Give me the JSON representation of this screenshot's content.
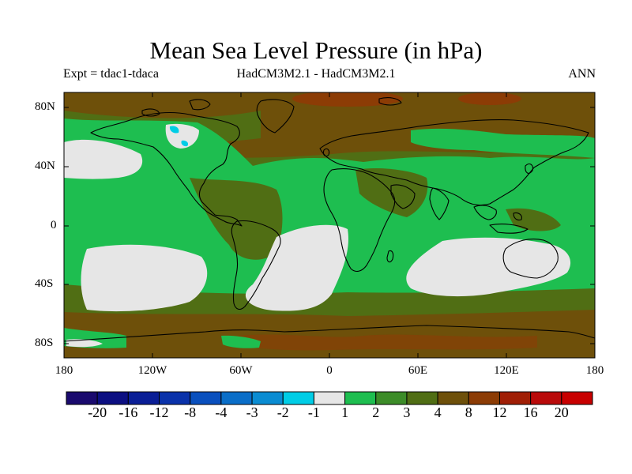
{
  "title": "Mean Sea Level Pressure (in hPa)",
  "experiment": "Expt = tdac1-tdaca",
  "models": "HadCM3M2.1 - HadCM3M2.1",
  "season": "ANN",
  "lat_labels": [
    "80N",
    "40N",
    "0",
    "40S",
    "80S"
  ],
  "lon_labels": [
    "180",
    "120W",
    "60W",
    "0",
    "60E",
    "120E",
    "180"
  ],
  "colorbar": {
    "colors": [
      "#1a0a6e",
      "#0c0f82",
      "#0a1e96",
      "#0a32aa",
      "#0a50be",
      "#0a6ec8",
      "#0a8cd2",
      "#00cde6",
      "#e6e6e6",
      "#1ebe50",
      "#3c8c28",
      "#506e14",
      "#6e500a",
      "#8c3c05",
      "#a01e05",
      "#b90a0a",
      "#c80000"
    ],
    "labels": [
      "-20",
      "-16",
      "-12",
      "-8",
      "-4",
      "-3",
      "-2",
      "-1",
      "1",
      "2",
      "3",
      "4",
      "8",
      "12",
      "16",
      "20"
    ]
  },
  "palette": {
    "background": "#6e500a",
    "green": "#1ebe50",
    "olive": "#506e14",
    "white": "#e6e6e6",
    "cyan": "#00cde6",
    "darkred": "#8c3c05"
  }
}
